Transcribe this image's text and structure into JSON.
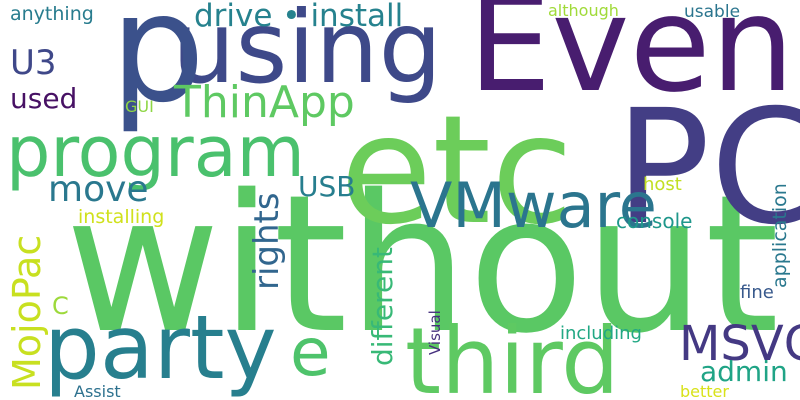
{
  "words": [
    {
      "text": "without",
      "color": "#5ac864"
    },
    {
      "text": "etc",
      "color": "#6ccd5a"
    },
    {
      "text": "PC",
      "color": "#433e85"
    },
    {
      "text": "Even",
      "color": "#481d6f"
    },
    {
      "text": "using",
      "color": "#3e4989"
    },
    {
      "text": "p",
      "color": "#3b518b"
    },
    {
      "text": "third",
      "color": "#5ec962"
    },
    {
      "text": "party",
      "color": "#277f8e"
    },
    {
      "text": "program",
      "color": "#4ac16d"
    },
    {
      "text": "VMware",
      "color": "#2b758e"
    },
    {
      "text": "e",
      "color": "#4ec36b"
    },
    {
      "text": "ThinApp",
      "color": "#5ec962"
    },
    {
      "text": "MSVC",
      "color": "#443983"
    },
    {
      "text": "move",
      "color": "#2a788e"
    },
    {
      "text": "drive • install",
      "color": "#26828e"
    },
    {
      "text": "U3",
      "color": "#3f4889"
    },
    {
      "text": "used",
      "color": "#471164"
    },
    {
      "text": "MojoPac",
      "color": "#c8e020"
    },
    {
      "text": "rights",
      "color": "#31668e"
    },
    {
      "text": "different",
      "color": "#38b977"
    },
    {
      "text": "USB",
      "color": "#277e8e"
    },
    {
      "text": "admin",
      "color": "#20a486"
    },
    {
      "text": "anything",
      "color": "#287c8e"
    },
    {
      "text": "C",
      "color": "#9dd93b"
    },
    {
      "text": "although",
      "color": "#a0da39"
    },
    {
      "text": "usable",
      "color": "#2b758e"
    },
    {
      "text": "GUI",
      "color": "#8ed645"
    },
    {
      "text": "host",
      "color": "#c2df23"
    },
    {
      "text": "installing",
      "color": "#d0e11c"
    },
    {
      "text": "console",
      "color": "#1f978b"
    },
    {
      "text": "application",
      "color": "#2a788e"
    },
    {
      "text": "fine",
      "color": "#38598c"
    },
    {
      "text": "Visual",
      "color": "#46307e"
    },
    {
      "text": "including",
      "color": "#22a884"
    },
    {
      "text": "Assist",
      "color": "#2d718e"
    },
    {
      "text": "better",
      "color": "#d8e219"
    }
  ]
}
